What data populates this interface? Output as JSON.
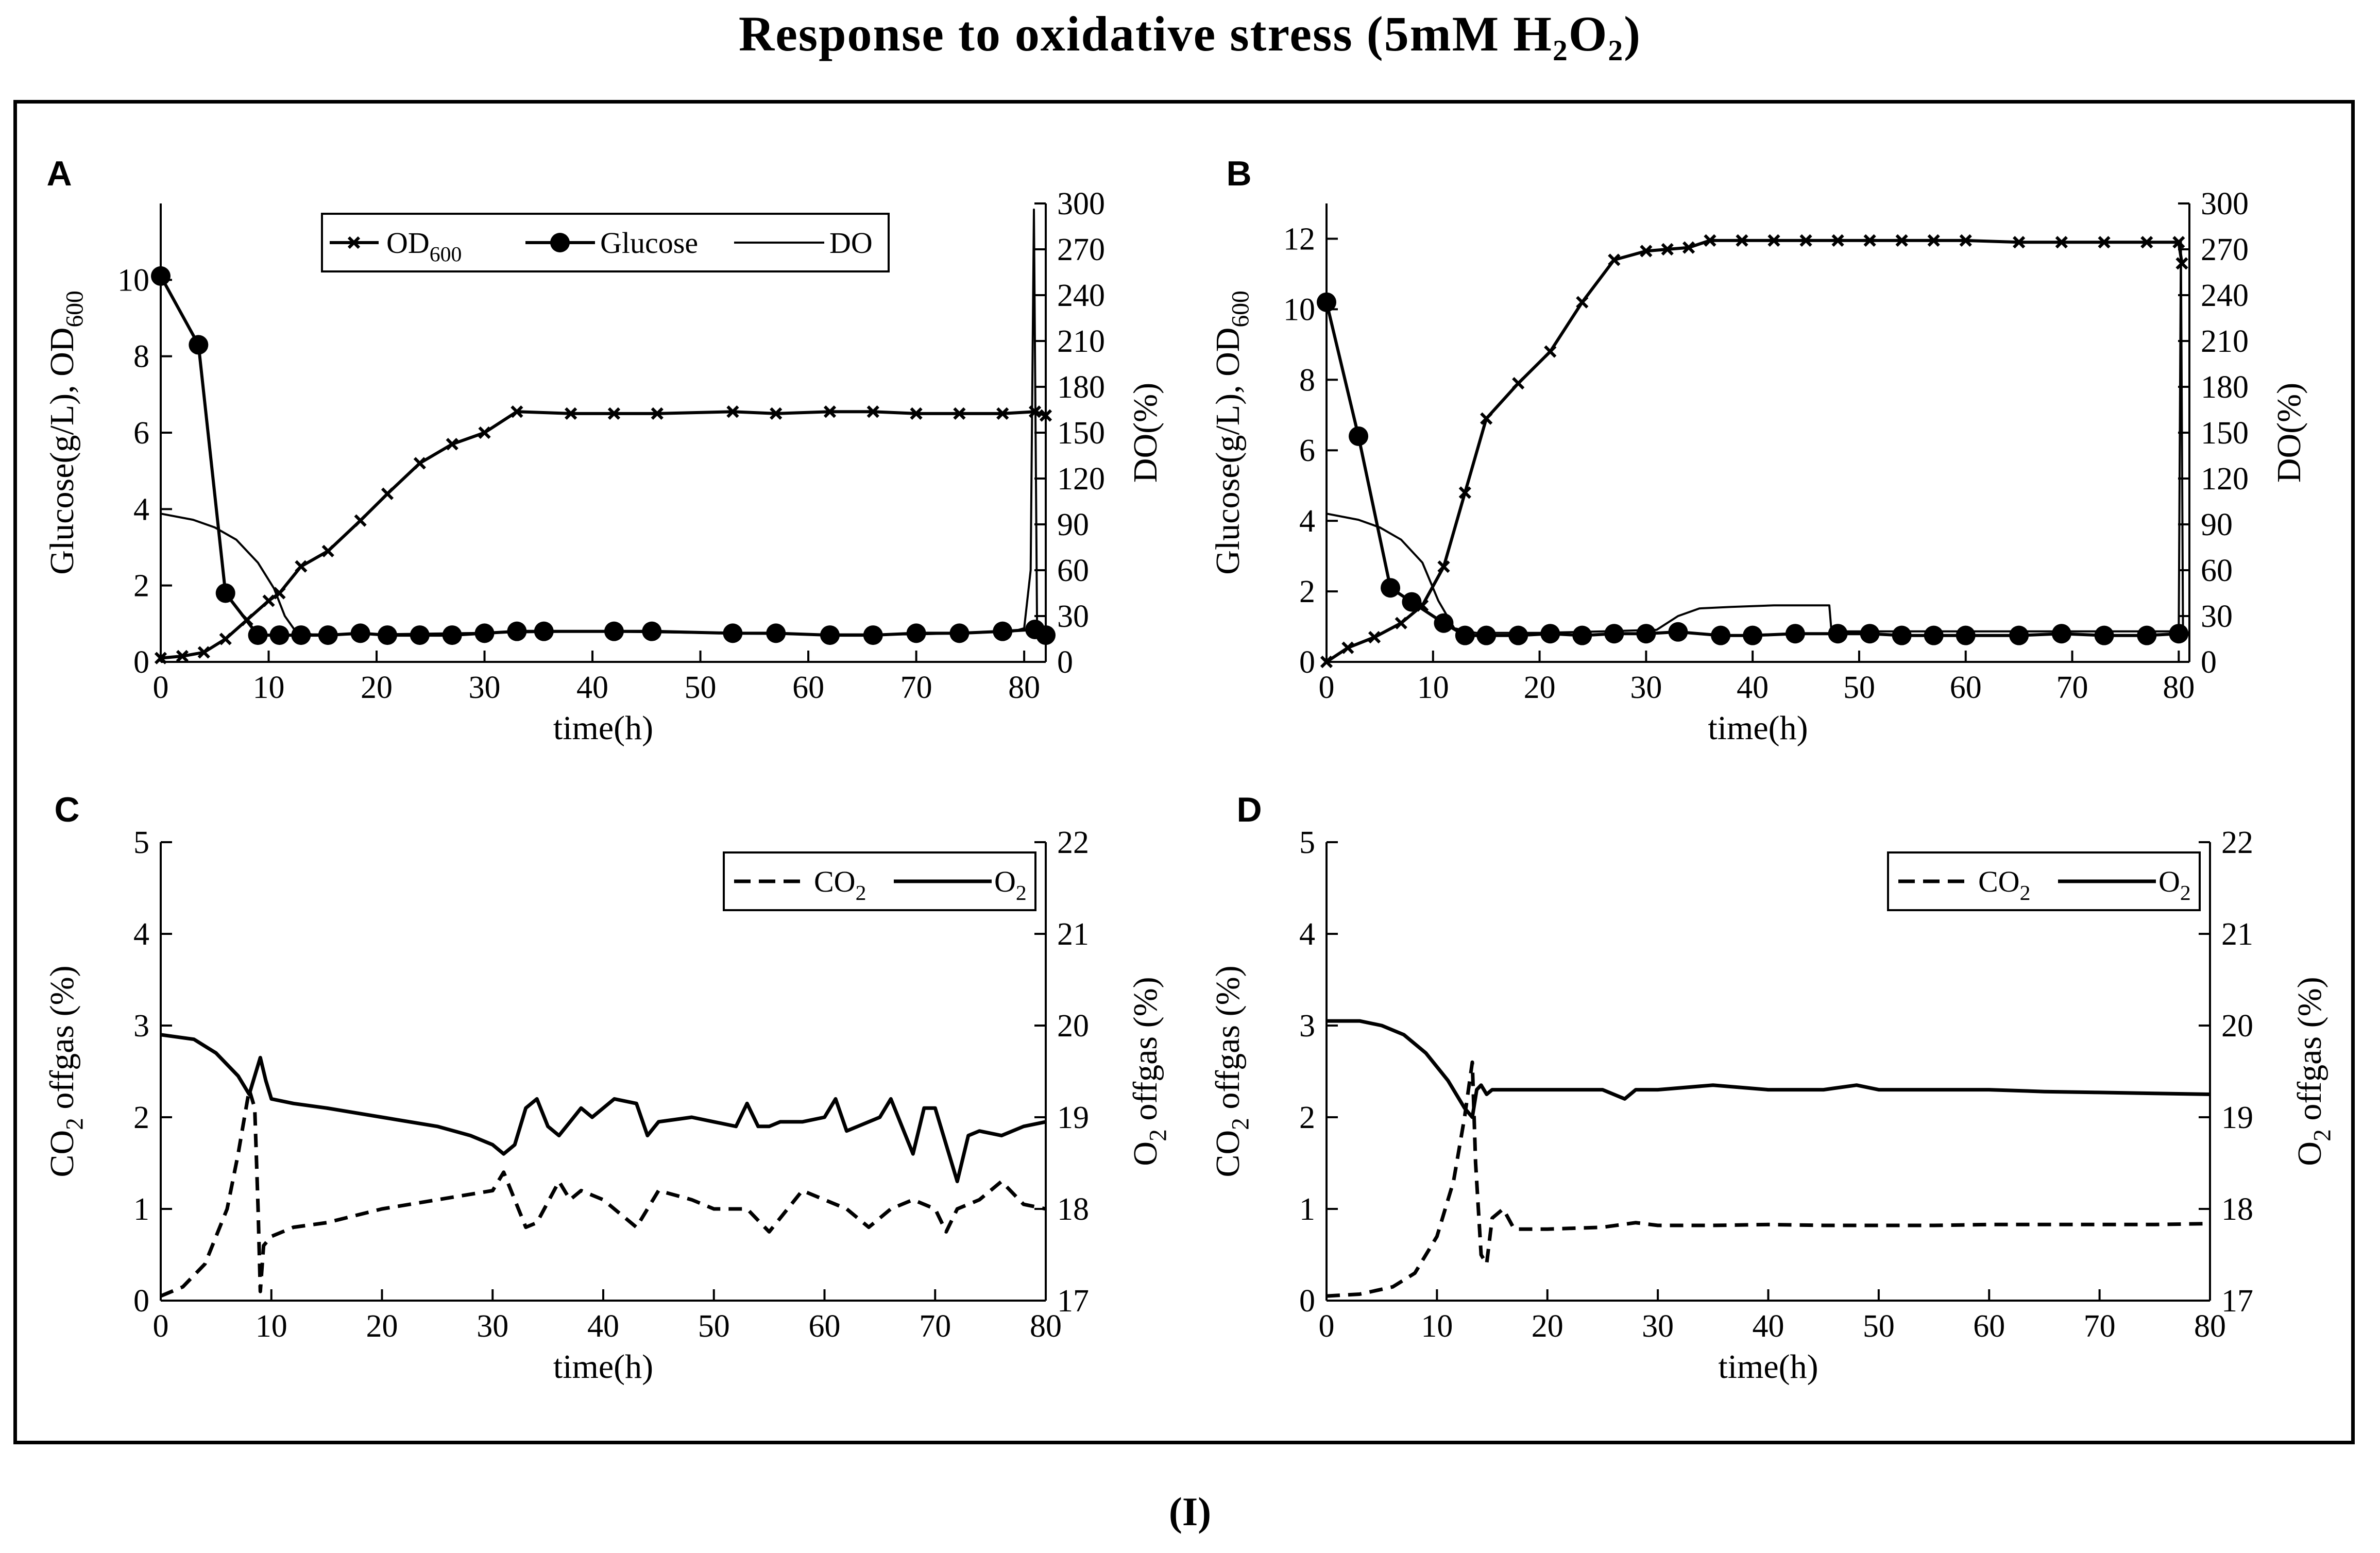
{
  "figure": {
    "title": "Response to oxidative stress (5mM H₂O₂)",
    "caption": "(I)"
  },
  "chart_data": [
    {
      "panel": "A",
      "type": "line",
      "xlabel": "time(h)",
      "ylabel": "Glucose(g/L), OD600",
      "ylabel_right": "DO(%)",
      "xlim": [
        0,
        82
      ],
      "xticks": [
        0,
        10,
        20,
        30,
        40,
        50,
        60,
        70,
        80
      ],
      "ylim": [
        0,
        12
      ],
      "yticks": [
        0,
        2,
        4,
        6,
        8,
        10
      ],
      "ylim_right": [
        0,
        300
      ],
      "yticks_right": [
        0,
        30,
        60,
        90,
        120,
        150,
        180,
        210,
        240,
        270,
        300
      ],
      "legend": [
        "OD600",
        "Glucose",
        "DO"
      ],
      "legend_position": "top-center",
      "series": [
        {
          "name": "OD600",
          "marker": "x",
          "axis": "left",
          "x": [
            0,
            2,
            4,
            6,
            8,
            10,
            11,
            13,
            15.5,
            18.5,
            21,
            24,
            27,
            30,
            33,
            38,
            42,
            46,
            53,
            57,
            62,
            66,
            70,
            74,
            78,
            81,
            82
          ],
          "y": [
            0.1,
            0.15,
            0.25,
            0.6,
            1.1,
            1.6,
            1.8,
            2.5,
            2.9,
            3.7,
            4.4,
            5.2,
            5.7,
            6.0,
            6.55,
            6.5,
            6.5,
            6.5,
            6.55,
            6.5,
            6.55,
            6.55,
            6.5,
            6.5,
            6.5,
            6.55,
            6.45
          ]
        },
        {
          "name": "Glucose",
          "marker": "circle",
          "axis": "left",
          "x": [
            0,
            3.5,
            6,
            9,
            11,
            13,
            15.5,
            18.5,
            21,
            24,
            27,
            30,
            33,
            35.5,
            42,
            45.5,
            53,
            57,
            62,
            66,
            70,
            74,
            78,
            81,
            82
          ],
          "y": [
            10.1,
            8.3,
            1.8,
            0.7,
            0.7,
            0.7,
            0.7,
            0.75,
            0.7,
            0.7,
            0.7,
            0.75,
            0.8,
            0.8,
            0.8,
            0.8,
            0.75,
            0.75,
            0.7,
            0.7,
            0.75,
            0.75,
            0.8,
            0.85,
            0.7
          ]
        },
        {
          "name": "DO",
          "marker": "none",
          "axis": "right",
          "x": [
            0,
            3,
            5,
            7,
            9,
            10.5,
            11.5,
            12.5,
            14,
            20,
            30,
            40,
            50,
            60,
            70,
            75,
            79,
            80,
            80.6,
            80.9,
            81.2,
            81.6,
            82
          ],
          "y": [
            97,
            93,
            88,
            80,
            65,
            48,
            30,
            20,
            18,
            18,
            19,
            20,
            19,
            18,
            18,
            19,
            20,
            22,
            60,
            296,
            20,
            18,
            18
          ]
        }
      ]
    },
    {
      "panel": "B",
      "type": "line",
      "xlabel": "time(h)",
      "ylabel": "Glucose(g/L), OD600",
      "ylabel_right": "DO(%)",
      "xlim": [
        0,
        81
      ],
      "xticks": [
        0,
        10,
        20,
        30,
        40,
        50,
        60,
        70,
        80
      ],
      "ylim": [
        0,
        13
      ],
      "yticks": [
        0,
        2,
        4,
        6,
        8,
        10,
        12
      ],
      "ylim_right": [
        0,
        300
      ],
      "yticks_right": [
        0,
        30,
        60,
        90,
        120,
        150,
        180,
        210,
        240,
        270,
        300
      ],
      "series": [
        {
          "name": "OD600",
          "marker": "x",
          "axis": "left",
          "x": [
            0,
            2,
            4.5,
            7,
            9,
            11,
            13,
            15,
            18,
            21,
            24,
            27,
            30,
            32,
            34,
            36,
            39,
            42,
            45,
            48,
            51,
            54,
            57,
            60,
            65,
            69,
            73,
            77,
            80,
            80.3
          ],
          "y": [
            0.0,
            0.4,
            0.7,
            1.1,
            1.6,
            2.7,
            4.8,
            6.9,
            7.9,
            8.8,
            10.2,
            11.4,
            11.65,
            11.7,
            11.75,
            11.95,
            11.95,
            11.95,
            11.95,
            11.95,
            11.95,
            11.95,
            11.95,
            11.95,
            11.9,
            11.9,
            11.9,
            11.9,
            11.9,
            11.3
          ]
        },
        {
          "name": "Glucose",
          "marker": "circle",
          "axis": "left",
          "x": [
            0,
            3,
            6,
            8,
            11,
            13,
            15,
            18,
            21,
            24,
            27,
            30,
            33,
            37,
            40,
            44,
            48,
            51,
            54,
            57,
            60,
            65,
            69,
            73,
            77,
            80
          ],
          "y": [
            10.2,
            6.4,
            2.1,
            1.7,
            1.1,
            0.75,
            0.75,
            0.75,
            0.8,
            0.75,
            0.8,
            0.8,
            0.85,
            0.75,
            0.75,
            0.8,
            0.8,
            0.8,
            0.75,
            0.75,
            0.75,
            0.75,
            0.8,
            0.75,
            0.75,
            0.8
          ]
        },
        {
          "name": "DO",
          "marker": "none",
          "axis": "right",
          "x": [
            0,
            3,
            5,
            7,
            9,
            10.5,
            12,
            14,
            20,
            26,
            31,
            33,
            35,
            38,
            42,
            46,
            47.2,
            47.4,
            50,
            60,
            70,
            79,
            80,
            80.2,
            80.4,
            80.6,
            81
          ],
          "y": [
            97,
            93,
            88,
            80,
            65,
            40,
            22,
            19,
            19,
            20,
            21,
            30,
            35,
            36,
            37,
            37,
            37,
            20,
            20,
            20,
            20,
            20,
            20,
            275,
            20,
            18,
            18
          ]
        }
      ]
    },
    {
      "panel": "C",
      "type": "line",
      "xlabel": "time(h)",
      "ylabel": "CO2 offgas (%)",
      "ylabel_right": "O2 offgas (%)",
      "xlim": [
        0,
        80
      ],
      "xticks": [
        0,
        10,
        20,
        30,
        40,
        50,
        60,
        70,
        80
      ],
      "ylim": [
        0,
        5
      ],
      "yticks": [
        0,
        1,
        2,
        3,
        4,
        5
      ],
      "ylim_right": [
        17,
        22
      ],
      "yticks_right": [
        17,
        18,
        19,
        20,
        21,
        22
      ],
      "legend": [
        "CO2",
        "O2"
      ],
      "legend_position": "top-right",
      "series": [
        {
          "name": "CO2",
          "style": "dashed",
          "axis": "left",
          "x": [
            0,
            2,
            4,
            6,
            7,
            8,
            8.5,
            8.8,
            9,
            9.3,
            10,
            12,
            15,
            20,
            25,
            30,
            31,
            32,
            33,
            34,
            36,
            37,
            38,
            40,
            43,
            45,
            48,
            50,
            53,
            55,
            58,
            60,
            62,
            64,
            66,
            68,
            70,
            71,
            72,
            74,
            76,
            78,
            80
          ],
          "y": [
            0.05,
            0.15,
            0.4,
            1.0,
            1.6,
            2.3,
            2.1,
            1.0,
            0.1,
            0.6,
            0.7,
            0.8,
            0.85,
            1.0,
            1.1,
            1.2,
            1.4,
            1.1,
            0.8,
            0.85,
            1.3,
            1.1,
            1.2,
            1.1,
            0.8,
            1.2,
            1.1,
            1.0,
            1.0,
            0.75,
            1.2,
            1.1,
            1.0,
            0.8,
            1.0,
            1.1,
            1.0,
            0.75,
            1.0,
            1.1,
            1.3,
            1.05,
            1.0
          ]
        },
        {
          "name": "O2",
          "style": "solid",
          "axis": "right",
          "x": [
            0,
            3,
            5,
            7,
            8,
            8.5,
            9,
            9.5,
            10,
            12,
            15,
            20,
            25,
            28,
            30,
            31,
            32,
            33,
            34,
            35,
            36,
            37,
            38,
            39,
            41,
            43,
            44,
            45,
            48,
            50,
            52,
            53,
            54,
            55,
            56,
            58,
            60,
            61,
            62,
            63,
            65,
            66,
            67,
            68,
            69,
            70,
            71,
            72,
            73,
            74,
            76,
            78,
            80
          ],
          "y": [
            19.9,
            19.85,
            19.7,
            19.45,
            19.25,
            19.45,
            19.65,
            19.4,
            19.2,
            19.15,
            19.1,
            19.0,
            18.9,
            18.8,
            18.7,
            18.6,
            18.7,
            19.1,
            19.2,
            18.9,
            18.8,
            18.95,
            19.1,
            19.0,
            19.2,
            19.15,
            18.8,
            18.95,
            19.0,
            18.95,
            18.9,
            19.15,
            18.9,
            18.9,
            18.95,
            18.95,
            19.0,
            19.2,
            18.85,
            18.9,
            19.0,
            19.2,
            18.9,
            18.6,
            19.1,
            19.1,
            18.7,
            18.3,
            18.8,
            18.85,
            18.8,
            18.9,
            18.95
          ]
        }
      ]
    },
    {
      "panel": "D",
      "type": "line",
      "xlabel": "time(h)",
      "ylabel": "CO2 offgas (%)",
      "ylabel_right": "O2 offgas (%)",
      "xlim": [
        0,
        80
      ],
      "xticks": [
        0,
        10,
        20,
        30,
        40,
        50,
        60,
        70,
        80
      ],
      "ylim": [
        0,
        5
      ],
      "yticks": [
        0,
        1,
        2,
        3,
        4,
        5
      ],
      "ylim_right": [
        17,
        22
      ],
      "yticks_right": [
        17,
        18,
        19,
        20,
        21,
        22
      ],
      "legend": [
        "CO2",
        "O2"
      ],
      "legend_position": "top-right",
      "series": [
        {
          "name": "CO2",
          "style": "dashed",
          "axis": "left",
          "x": [
            0,
            3,
            6,
            8,
            10,
            11.5,
            12.5,
            13.2,
            13.5,
            14,
            14.5,
            15,
            16,
            17,
            20,
            25,
            28,
            30,
            35,
            40,
            45,
            50,
            55,
            60,
            65,
            70,
            75,
            80
          ],
          "y": [
            0.05,
            0.07,
            0.15,
            0.3,
            0.7,
            1.3,
            2.0,
            2.6,
            1.5,
            0.5,
            0.4,
            0.9,
            1.0,
            0.78,
            0.78,
            0.8,
            0.85,
            0.82,
            0.82,
            0.83,
            0.82,
            0.82,
            0.82,
            0.83,
            0.83,
            0.83,
            0.83,
            0.84
          ]
        },
        {
          "name": "O2",
          "style": "solid",
          "axis": "right",
          "x": [
            0,
            3,
            5,
            7,
            9,
            11,
            12.5,
            13.2,
            13.6,
            14,
            14.5,
            15,
            17,
            20,
            25,
            27,
            28,
            30,
            35,
            40,
            45,
            48,
            50,
            55,
            60,
            65,
            70,
            75,
            80
          ],
          "y": [
            20.05,
            20.05,
            20.0,
            19.9,
            19.7,
            19.4,
            19.1,
            19.0,
            19.3,
            19.35,
            19.25,
            19.3,
            19.3,
            19.3,
            19.3,
            19.2,
            19.3,
            19.3,
            19.35,
            19.3,
            19.3,
            19.35,
            19.3,
            19.3,
            19.3,
            19.28,
            19.27,
            19.26,
            19.25
          ]
        }
      ]
    }
  ]
}
